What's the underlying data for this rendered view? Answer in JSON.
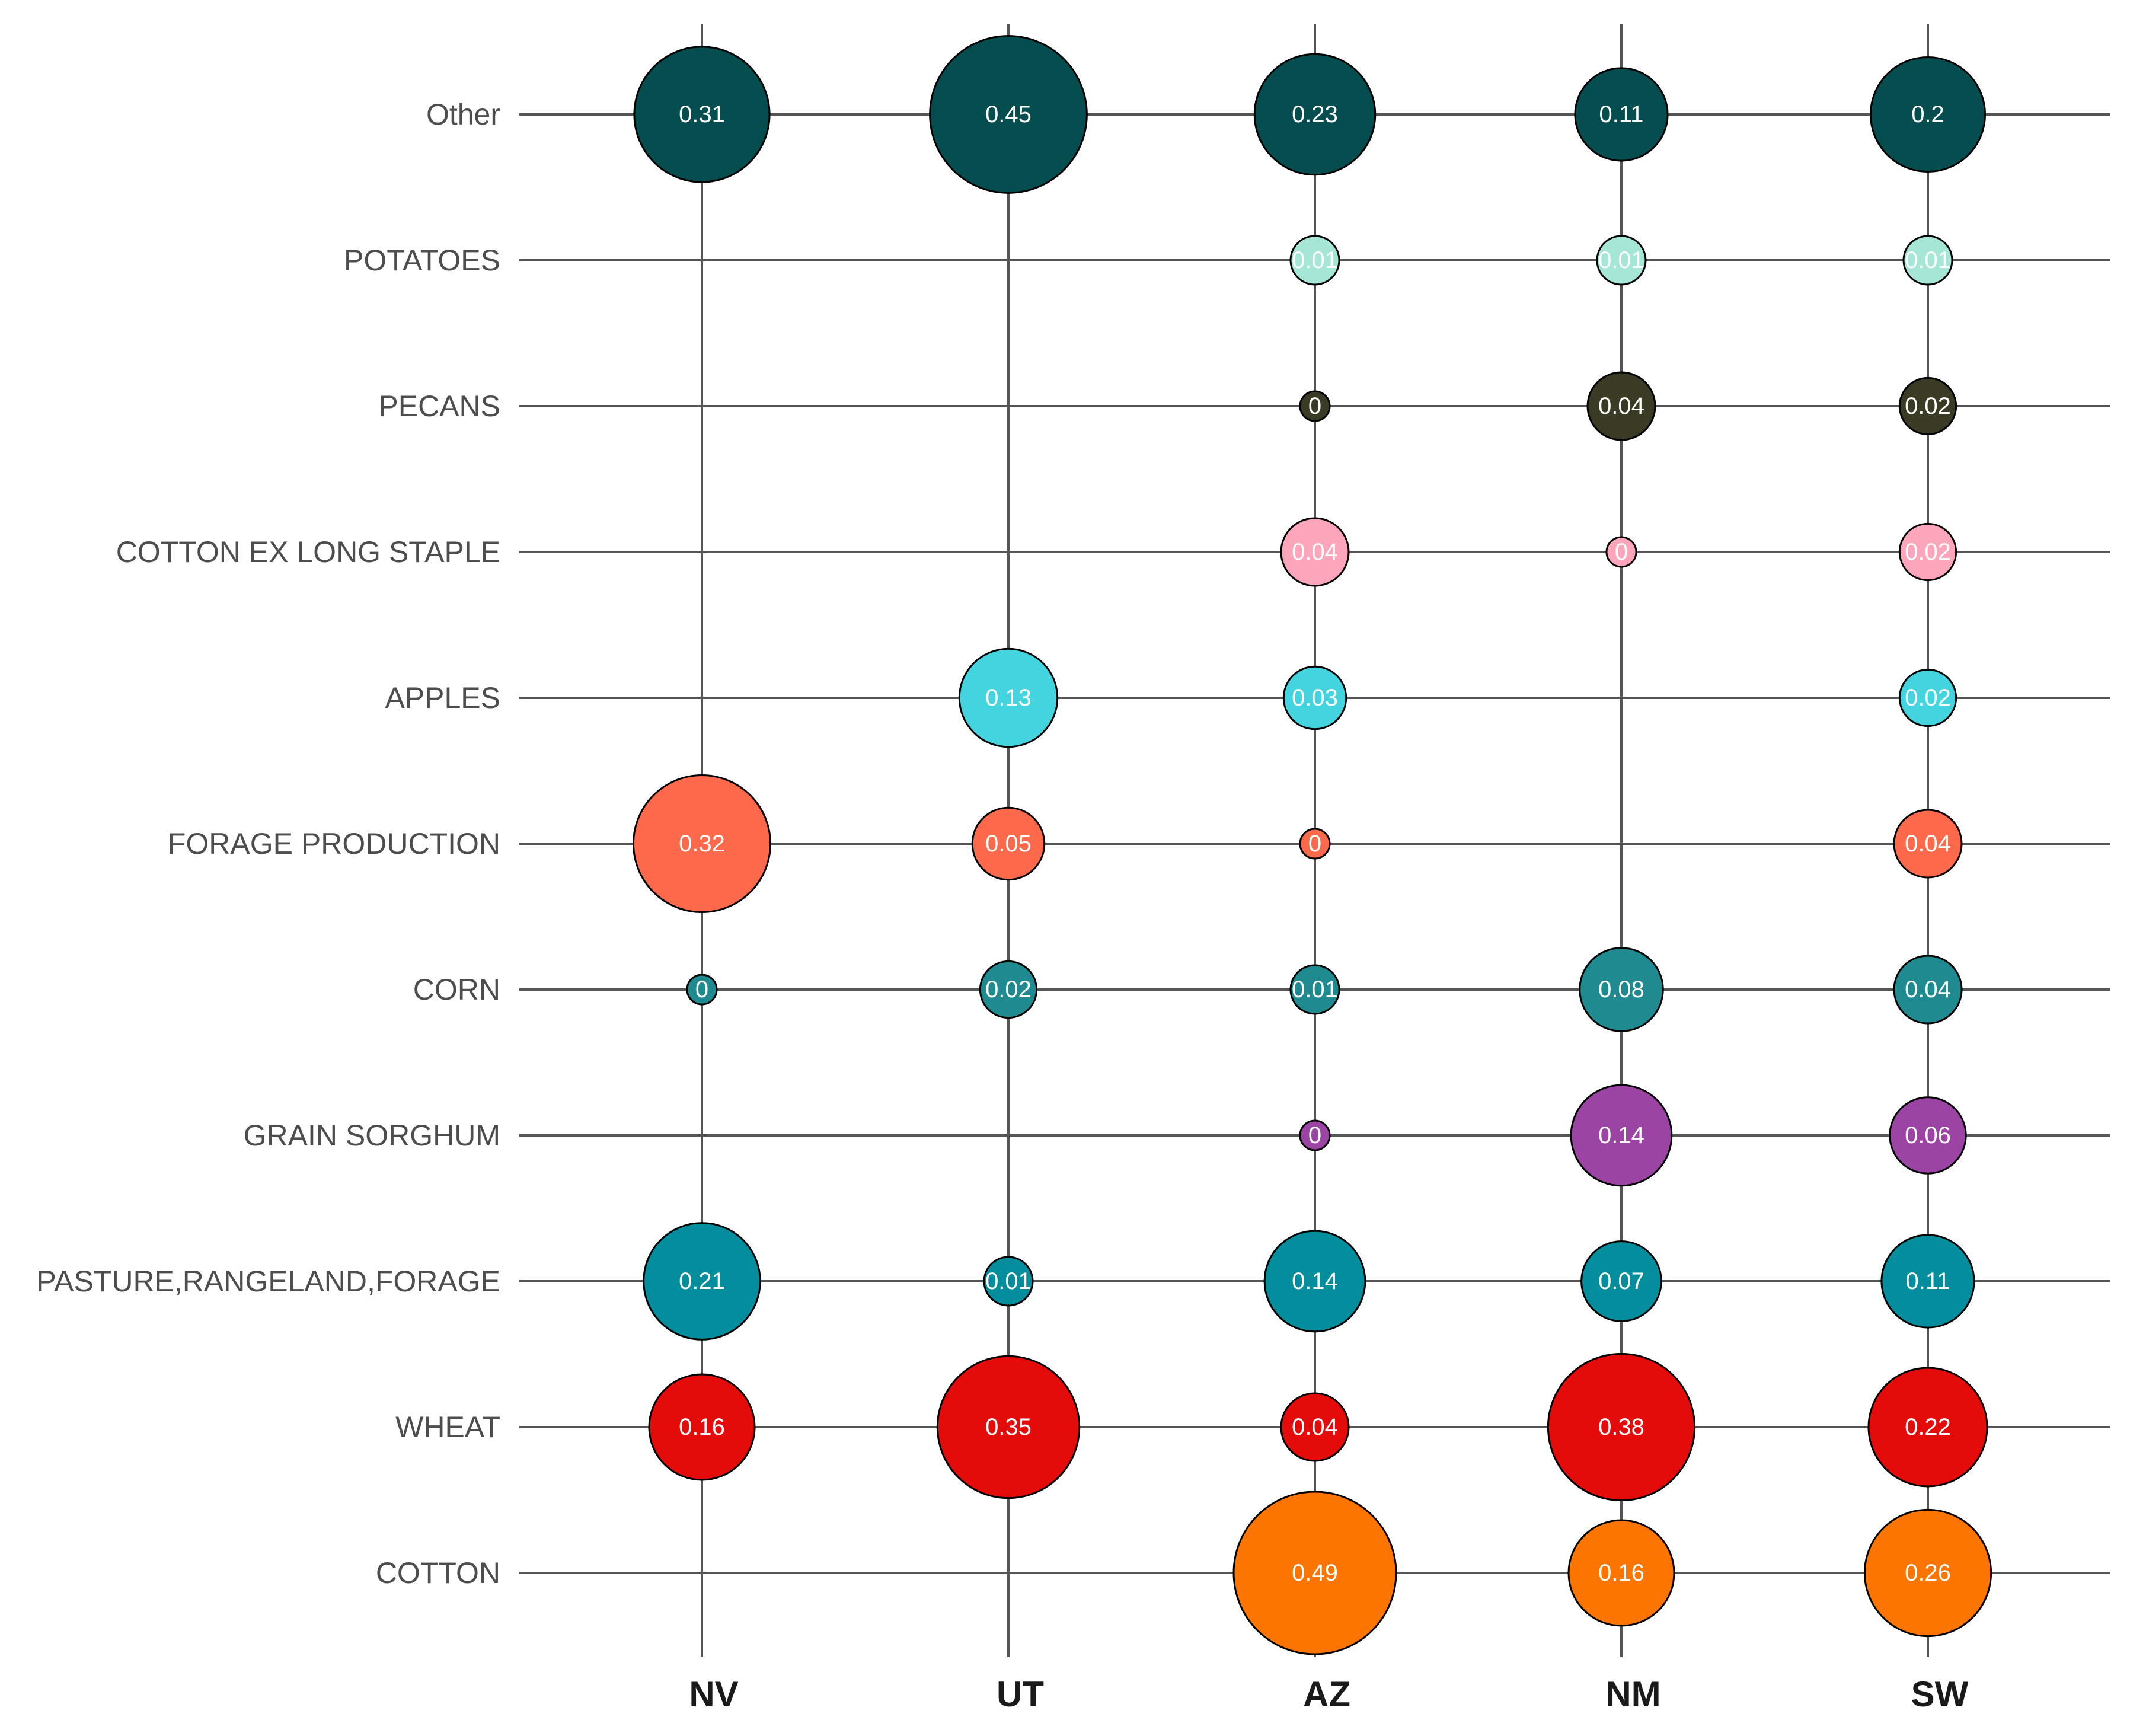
{
  "chart_data": {
    "type": "bubble",
    "x_categories": [
      "NV",
      "UT",
      "AZ",
      "NM",
      "SW"
    ],
    "y_categories": [
      "Other",
      "POTATOES",
      "PECANS",
      "COTTON EX LONG STAPLE",
      "APPLES",
      "FORAGE PRODUCTION",
      "CORN",
      "GRAIN SORGHUM",
      "PASTURE,RANGELAND,FORAGE",
      "WHEAT",
      "COTTON"
    ],
    "colors": {
      "Other": "#054d4f",
      "POTATOES": "#a6e6d6",
      "PECANS": "#3b3a24",
      "COTTON EX LONG STAPLE": "#fca5bb",
      "APPLES": "#44d4e0",
      "FORAGE PRODUCTION": "#fd6a4b",
      "CORN": "#1f8a90",
      "GRAIN SORGHUM": "#9b44a4",
      "PASTURE,RANGELAND,FORAGE": "#048e9d",
      "WHEAT": "#e40b0b",
      "COTTON": "#fd7501"
    },
    "points": [
      {
        "x": "NV",
        "y": "Other",
        "value": 0.31
      },
      {
        "x": "UT",
        "y": "Other",
        "value": 0.45
      },
      {
        "x": "AZ",
        "y": "Other",
        "value": 0.23
      },
      {
        "x": "NM",
        "y": "Other",
        "value": 0.11
      },
      {
        "x": "SW",
        "y": "Other",
        "value": 0.2
      },
      {
        "x": "AZ",
        "y": "POTATOES",
        "value": 0.01
      },
      {
        "x": "NM",
        "y": "POTATOES",
        "value": 0.01
      },
      {
        "x": "SW",
        "y": "POTATOES",
        "value": 0.01
      },
      {
        "x": "AZ",
        "y": "PECANS",
        "value": 0
      },
      {
        "x": "NM",
        "y": "PECANS",
        "value": 0.04
      },
      {
        "x": "SW",
        "y": "PECANS",
        "value": 0.02
      },
      {
        "x": "AZ",
        "y": "COTTON EX LONG STAPLE",
        "value": 0.04
      },
      {
        "x": "NM",
        "y": "COTTON EX LONG STAPLE",
        "value": 0
      },
      {
        "x": "SW",
        "y": "COTTON EX LONG STAPLE",
        "value": 0.02
      },
      {
        "x": "UT",
        "y": "APPLES",
        "value": 0.13
      },
      {
        "x": "AZ",
        "y": "APPLES",
        "value": 0.03
      },
      {
        "x": "SW",
        "y": "APPLES",
        "value": 0.02
      },
      {
        "x": "NV",
        "y": "FORAGE PRODUCTION",
        "value": 0.32
      },
      {
        "x": "UT",
        "y": "FORAGE PRODUCTION",
        "value": 0.05
      },
      {
        "x": "AZ",
        "y": "FORAGE PRODUCTION",
        "value": 0
      },
      {
        "x": "SW",
        "y": "FORAGE PRODUCTION",
        "value": 0.04
      },
      {
        "x": "NV",
        "y": "CORN",
        "value": 0
      },
      {
        "x": "UT",
        "y": "CORN",
        "value": 0.02
      },
      {
        "x": "AZ",
        "y": "CORN",
        "value": 0.01
      },
      {
        "x": "NM",
        "y": "CORN",
        "value": 0.08
      },
      {
        "x": "SW",
        "y": "CORN",
        "value": 0.04
      },
      {
        "x": "AZ",
        "y": "GRAIN SORGHUM",
        "value": 0
      },
      {
        "x": "NM",
        "y": "GRAIN SORGHUM",
        "value": 0.14
      },
      {
        "x": "SW",
        "y": "GRAIN SORGHUM",
        "value": 0.06
      },
      {
        "x": "NV",
        "y": "PASTURE,RANGELAND,FORAGE",
        "value": 0.21
      },
      {
        "x": "UT",
        "y": "PASTURE,RANGELAND,FORAGE",
        "value": 0.01
      },
      {
        "x": "AZ",
        "y": "PASTURE,RANGELAND,FORAGE",
        "value": 0.14
      },
      {
        "x": "NM",
        "y": "PASTURE,RANGELAND,FORAGE",
        "value": 0.07
      },
      {
        "x": "SW",
        "y": "PASTURE,RANGELAND,FORAGE",
        "value": 0.11
      },
      {
        "x": "NV",
        "y": "WHEAT",
        "value": 0.16
      },
      {
        "x": "UT",
        "y": "WHEAT",
        "value": 0.35
      },
      {
        "x": "AZ",
        "y": "WHEAT",
        "value": 0.04
      },
      {
        "x": "NM",
        "y": "WHEAT",
        "value": 0.38
      },
      {
        "x": "SW",
        "y": "WHEAT",
        "value": 0.22
      },
      {
        "x": "AZ",
        "y": "COTTON",
        "value": 0.49
      },
      {
        "x": "NM",
        "y": "COTTON",
        "value": 0.16
      },
      {
        "x": "SW",
        "y": "COTTON",
        "value": 0.26
      }
    ],
    "grid": true,
    "legend": "none"
  }
}
